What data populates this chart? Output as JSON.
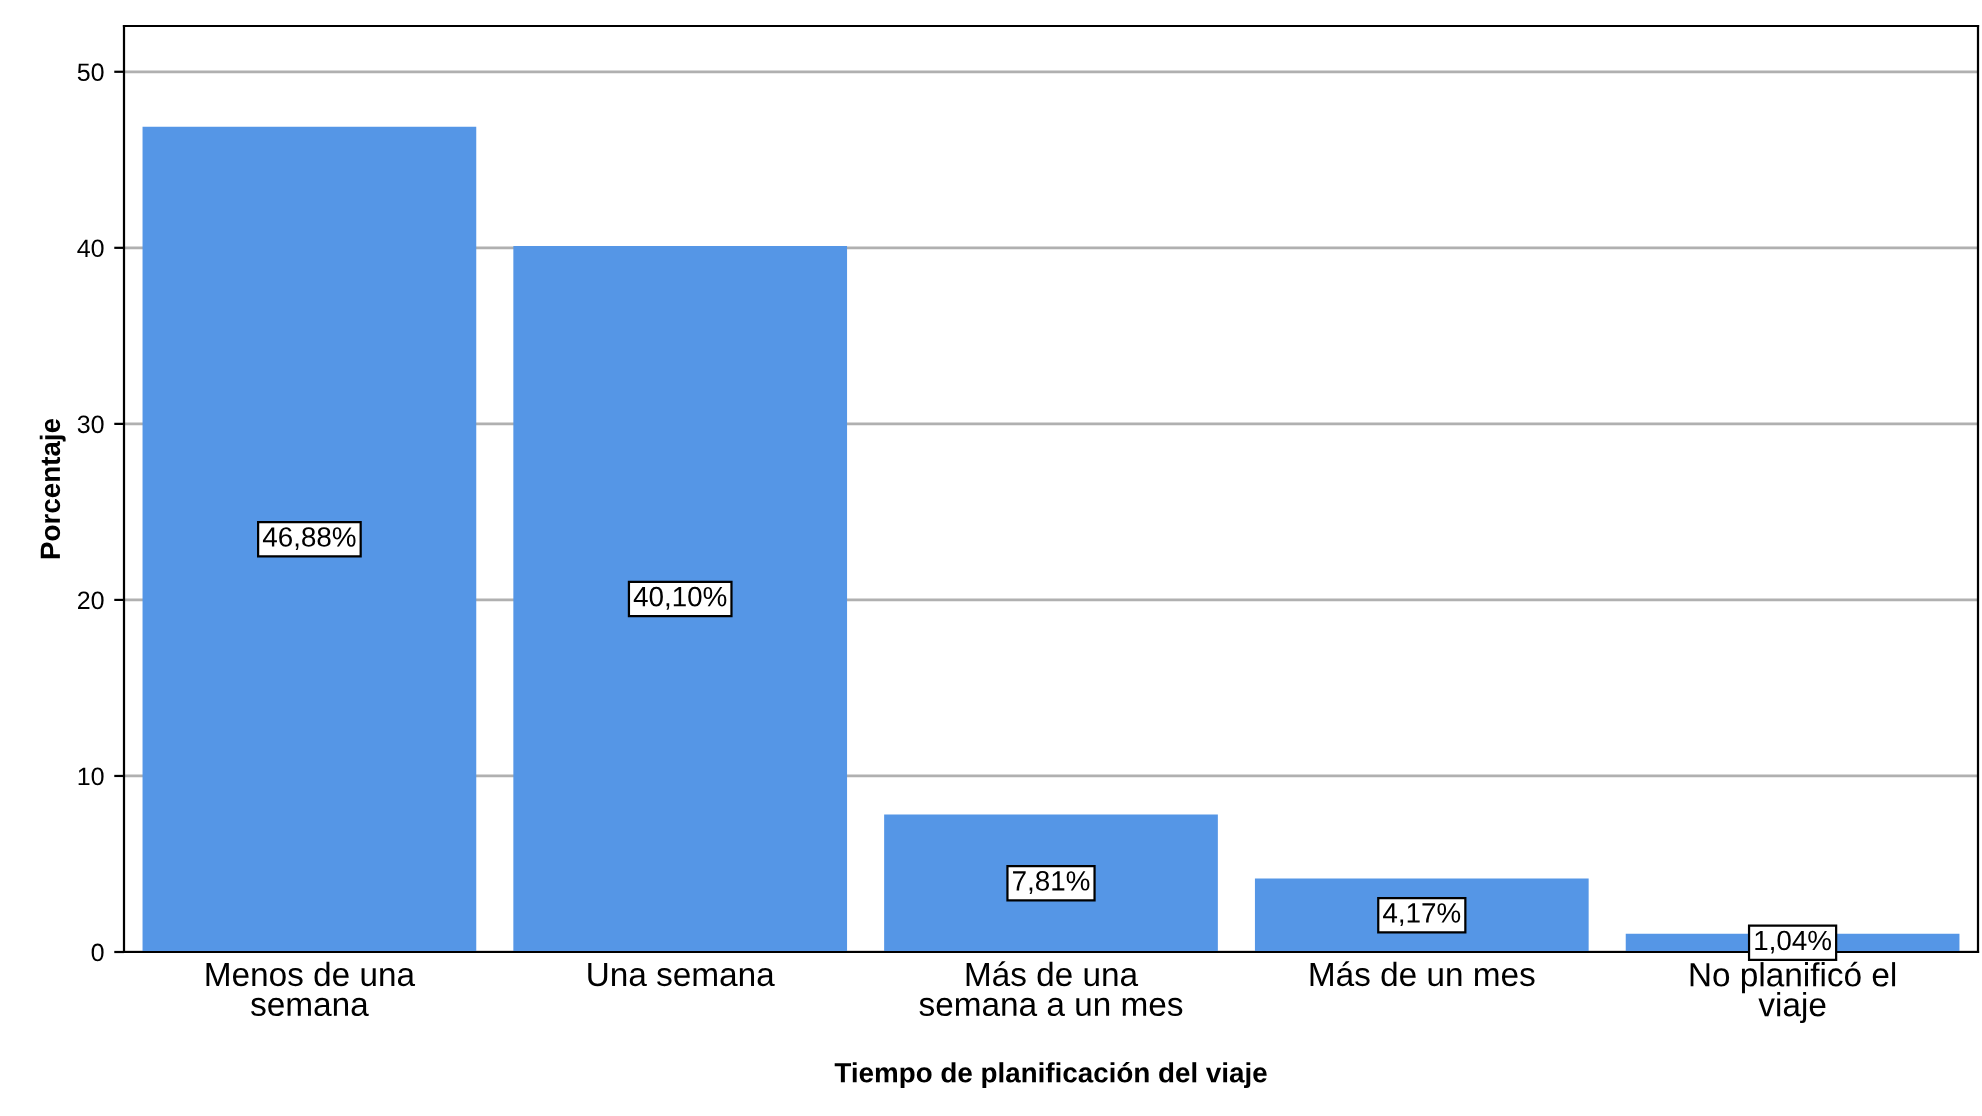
{
  "chart_data": {
    "type": "bar",
    "xlabel": "Tiempo de planificación del viaje",
    "ylabel": "Porcentaje",
    "categories": [
      "Menos de una\nsemana",
      "Una semana",
      "Más de una\nsemana a un mes",
      "Más de un mes",
      "No planificó el\nviaje"
    ],
    "values": [
      46.88,
      40.1,
      7.81,
      4.17,
      1.04
    ],
    "color": "#5596e6",
    "value_labels": [
      "46,88%",
      "40,10%",
      "7,81%",
      "4,17%",
      "1,04%"
    ],
    "ylim": [
      0,
      52.6
    ],
    "yticks": [
      0,
      10,
      20,
      30,
      40,
      50
    ],
    "grid": "y"
  }
}
